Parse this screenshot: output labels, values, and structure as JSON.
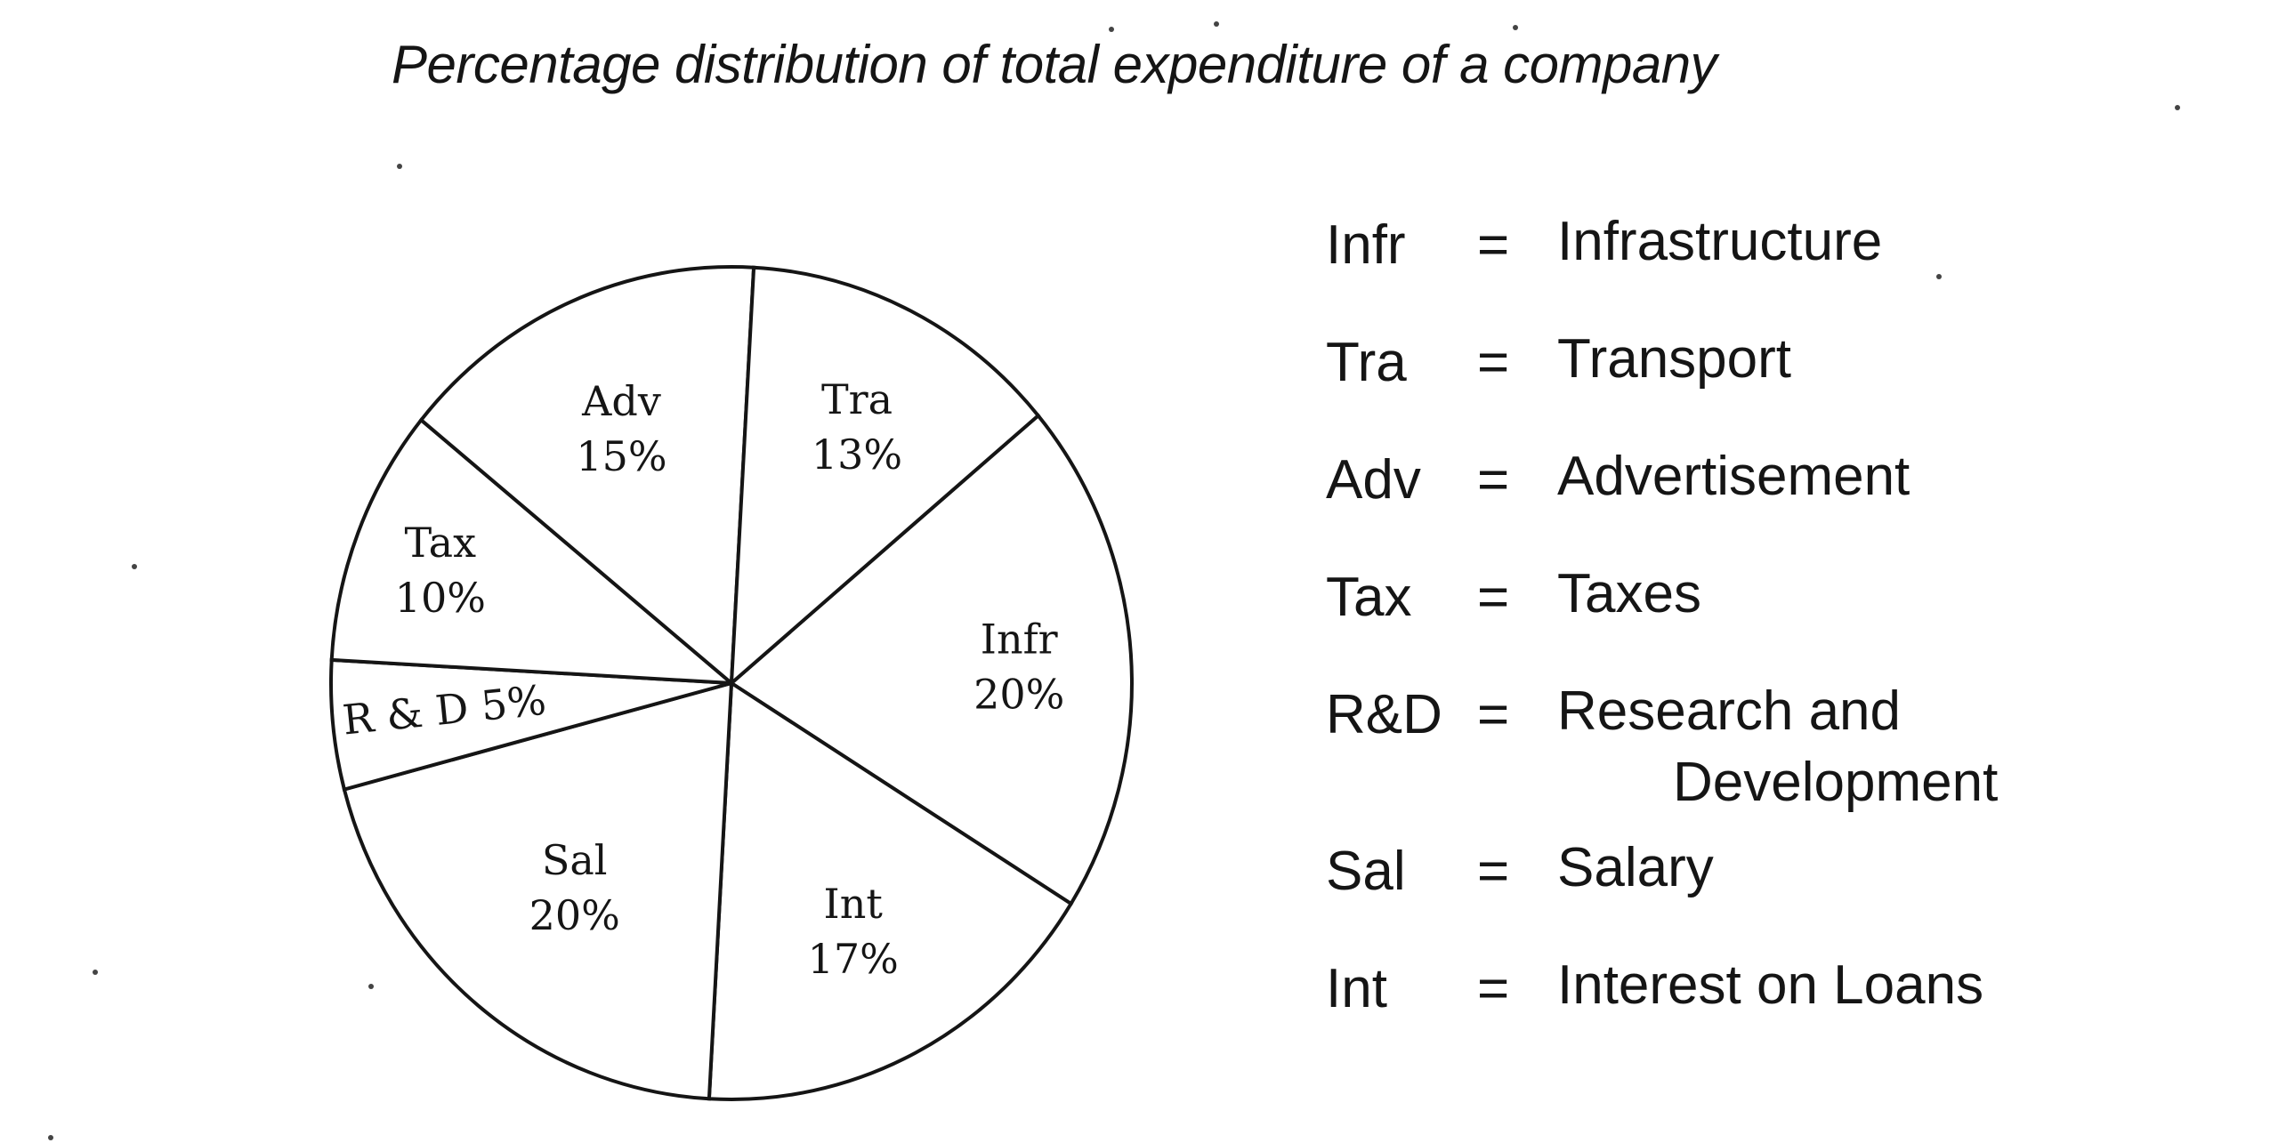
{
  "chart_data": {
    "type": "pie",
    "title": "Percentage distribution of total expenditure of a company",
    "slices": [
      {
        "key": "infr",
        "label": "Infr",
        "value": 20,
        "value_label": "20%"
      },
      {
        "key": "int",
        "label": "Int",
        "value": 17,
        "value_label": "17%"
      },
      {
        "key": "sal",
        "label": "Sal",
        "value": 20,
        "value_label": "20%"
      },
      {
        "key": "rnd",
        "label": "R & D",
        "value": 5,
        "value_label": "5%"
      },
      {
        "key": "tax",
        "label": "Tax",
        "value": 10,
        "value_label": "10%"
      },
      {
        "key": "adv",
        "label": "Adv",
        "value": 15,
        "value_label": "15%"
      },
      {
        "key": "tra",
        "label": "Tra",
        "value": 13,
        "value_label": "13%"
      }
    ],
    "legend": [
      {
        "abbr": "Infr",
        "full": "Infrastructure"
      },
      {
        "abbr": "Tra",
        "full": "Transport"
      },
      {
        "abbr": "Adv",
        "full": "Advertisement"
      },
      {
        "abbr": "Tax",
        "full": "Taxes"
      },
      {
        "abbr": "R&D",
        "full": "Research and",
        "full_line2": "Development"
      },
      {
        "abbr": "Sal",
        "full": "Salary"
      },
      {
        "abbr": "Int",
        "full": "Interest on Loans"
      }
    ],
    "legend_separator": "=",
    "legend_placement": "right",
    "colors": {
      "fill": "#ffffff",
      "stroke": "#151515"
    }
  }
}
